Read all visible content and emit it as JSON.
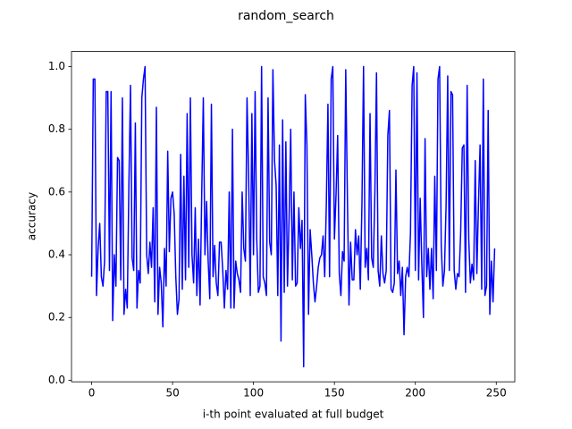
{
  "chart_data": {
    "type": "line",
    "title": "random_search",
    "x_label": "i-th point evaluated at full budget",
    "y_label": "accuracy",
    "x": [
      0,
      1,
      2,
      3,
      4,
      5,
      6,
      7,
      8,
      9,
      10,
      11,
      12,
      13,
      14,
      15,
      16,
      17,
      18,
      19,
      20,
      21,
      22,
      23,
      24,
      25,
      26,
      27,
      28,
      29,
      30,
      31,
      32,
      33,
      34,
      35,
      36,
      37,
      38,
      39,
      40,
      41,
      42,
      43,
      44,
      45,
      46,
      47,
      48,
      49,
      50,
      51,
      52,
      53,
      54,
      55,
      56,
      57,
      58,
      59,
      60,
      61,
      62,
      63,
      64,
      65,
      66,
      67,
      68,
      69,
      70,
      71,
      72,
      73,
      74,
      75,
      76,
      77,
      78,
      79,
      80,
      81,
      82,
      83,
      84,
      85,
      86,
      87,
      88,
      89,
      90,
      91,
      92,
      93,
      94,
      95,
      96,
      97,
      98,
      99,
      100,
      101,
      102,
      103,
      104,
      105,
      106,
      107,
      108,
      109,
      110,
      111,
      112,
      113,
      114,
      115,
      116,
      117,
      118,
      119,
      120,
      121,
      122,
      123,
      124,
      125,
      126,
      127,
      128,
      129,
      130,
      131,
      132,
      133,
      134,
      135,
      136,
      137,
      138,
      139,
      140,
      141,
      142,
      143,
      144,
      145,
      146,
      147,
      148,
      149,
      150,
      151,
      152,
      153,
      154,
      155,
      156,
      157,
      158,
      159,
      160,
      161,
      162,
      163,
      164,
      165,
      166,
      167,
      168,
      169,
      170,
      171,
      172,
      173,
      174,
      175,
      176,
      177,
      178,
      179,
      180,
      181,
      182,
      183,
      184,
      185,
      186,
      187,
      188,
      189,
      190,
      191,
      192,
      193,
      194,
      195,
      196,
      197,
      198,
      199,
      200,
      201,
      202,
      203,
      204,
      205,
      206,
      207,
      208,
      209,
      210,
      211,
      212,
      213,
      214,
      215,
      216,
      217,
      218,
      219,
      220,
      221,
      222,
      223,
      224,
      225,
      226,
      227,
      228,
      229,
      230,
      231,
      232,
      233,
      234,
      235,
      236,
      237,
      238,
      239,
      240,
      241,
      242,
      243,
      244,
      245,
      246,
      247,
      248,
      249
    ],
    "series": [
      {
        "color": "#0000ff",
        "values": [
          0.33,
          0.96,
          0.96,
          0.27,
          0.42,
          0.5,
          0.33,
          0.3,
          0.38,
          0.92,
          0.92,
          0.35,
          0.92,
          0.19,
          0.4,
          0.3,
          0.71,
          0.7,
          0.32,
          0.9,
          0.21,
          0.29,
          0.23,
          0.62,
          0.94,
          0.39,
          0.35,
          0.82,
          0.23,
          0.35,
          0.31,
          0.9,
          0.96,
          1.0,
          0.4,
          0.34,
          0.44,
          0.36,
          0.55,
          0.25,
          0.87,
          0.21,
          0.36,
          0.31,
          0.17,
          0.42,
          0.3,
          0.73,
          0.41,
          0.58,
          0.6,
          0.53,
          0.33,
          0.21,
          0.26,
          0.72,
          0.29,
          0.65,
          0.32,
          0.85,
          0.36,
          0.9,
          0.4,
          0.31,
          0.55,
          0.27,
          0.45,
          0.24,
          0.59,
          0.9,
          0.4,
          0.57,
          0.38,
          0.26,
          0.88,
          0.33,
          0.43,
          0.31,
          0.27,
          0.44,
          0.44,
          0.35,
          0.23,
          0.35,
          0.29,
          0.6,
          0.23,
          0.8,
          0.23,
          0.38,
          0.34,
          0.32,
          0.28,
          0.6,
          0.42,
          0.38,
          0.9,
          0.65,
          0.27,
          0.85,
          0.4,
          0.92,
          0.45,
          0.28,
          0.3,
          1.0,
          0.33,
          0.31,
          0.27,
          0.9,
          0.44,
          0.4,
          0.99,
          0.7,
          0.62,
          0.27,
          0.75,
          0.125,
          0.83,
          0.28,
          0.76,
          0.3,
          0.52,
          0.8,
          0.32,
          0.6,
          0.3,
          0.31,
          0.55,
          0.42,
          0.51,
          0.043,
          0.91,
          0.75,
          0.21,
          0.48,
          0.4,
          0.31,
          0.25,
          0.3,
          0.36,
          0.39,
          0.4,
          0.46,
          0.33,
          0.56,
          0.88,
          0.33,
          0.96,
          1.0,
          0.45,
          0.59,
          0.78,
          0.34,
          0.27,
          0.41,
          0.38,
          0.99,
          0.59,
          0.24,
          0.44,
          0.32,
          0.32,
          0.48,
          0.4,
          0.46,
          0.29,
          0.56,
          1.0,
          0.36,
          0.42,
          0.32,
          0.85,
          0.39,
          0.36,
          0.6,
          0.98,
          0.35,
          0.3,
          0.46,
          0.34,
          0.31,
          0.35,
          0.78,
          0.86,
          0.29,
          0.28,
          0.31,
          0.67,
          0.34,
          0.38,
          0.27,
          0.36,
          0.145,
          0.33,
          0.36,
          0.33,
          0.47,
          0.94,
          1.0,
          0.35,
          0.98,
          0.32,
          0.58,
          0.37,
          0.2,
          0.77,
          0.33,
          0.42,
          0.29,
          0.42,
          0.26,
          0.65,
          0.35,
          0.96,
          1.0,
          0.43,
          0.3,
          0.35,
          0.56,
          0.97,
          0.35,
          0.92,
          0.91,
          0.35,
          0.29,
          0.34,
          0.33,
          0.47,
          0.74,
          0.75,
          0.28,
          0.94,
          0.45,
          0.31,
          0.37,
          0.32,
          0.7,
          0.34,
          0.56,
          0.75,
          0.29,
          0.96,
          0.27,
          0.3,
          0.86,
          0.21,
          0.38,
          0.25,
          0.42
        ]
      }
    ],
    "xlim": [
      -12.45,
      261.45
    ],
    "xticks": [
      0,
      50,
      100,
      150,
      200,
      250
    ],
    "ylim": [
      -0.005,
      1.048
    ],
    "yticks": [
      {
        "value": 0,
        "label": "0.0"
      },
      {
        "value": 0.2,
        "label": "0.2"
      },
      {
        "value": 0.4,
        "label": "0.4"
      },
      {
        "value": 0.6,
        "label": "0.6"
      },
      {
        "value": 0.8,
        "label": "0.8"
      },
      {
        "value": 1,
        "label": "1.0"
      }
    ],
    "grid": false
  }
}
